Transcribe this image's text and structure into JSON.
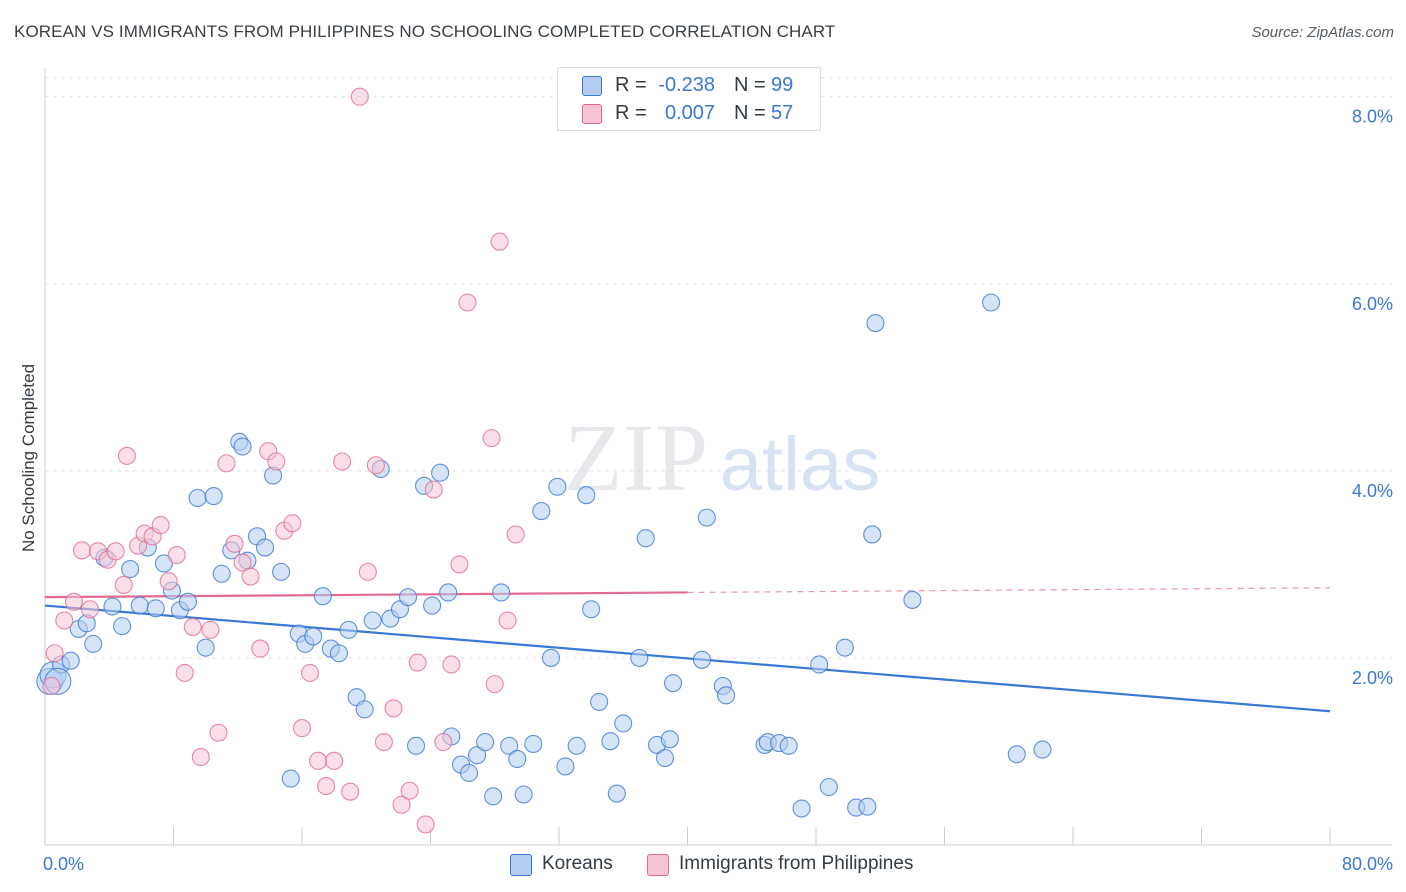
{
  "title": "KOREAN VS IMMIGRANTS FROM PHILIPPINES NO SCHOOLING COMPLETED CORRELATION CHART",
  "source": "Source: ZipAtlas.com",
  "watermark": {
    "zip": "ZIP",
    "atlas": "atlas"
  },
  "colors": {
    "blue": "#3a78d6",
    "blue_fill": "#b5cdf1",
    "pink": "#e26a93",
    "pink_fill": "#f6c4d5",
    "grid": "#dfe3e8",
    "axis": "#c9cdd3"
  },
  "legend_top": [
    {
      "r_label": "R =",
      "r_value": "-0.238",
      "n_label": "N =",
      "n_value": "99"
    },
    {
      "r_label": "R =",
      "r_value": "0.007",
      "n_label": "N =",
      "n_value": "57"
    }
  ],
  "legend_bottom": [
    "Koreans",
    "Immigrants from Philippines"
  ],
  "chart_data": {
    "type": "scatter",
    "title": "KOREAN VS IMMIGRANTS FROM PHILIPPINES NO SCHOOLING COMPLETED CORRELATION CHART",
    "xlabel": "",
    "ylabel": "No Schooling Completed",
    "xlim": [
      0,
      80
    ],
    "ylim": [
      0,
      8.2
    ],
    "x_tick_labels": [
      "0.0%",
      "80.0%"
    ],
    "y_ticks": [
      2,
      4,
      6,
      8
    ],
    "y_tick_labels": [
      "2.0%",
      "4.0%",
      "6.0%",
      "8.0%"
    ],
    "grid": true,
    "legend_position": "bottom",
    "series": [
      {
        "name": "Koreans",
        "color": "#3a78d6",
        "r": -0.238,
        "n": 99,
        "trend": {
          "x0": 0,
          "y0": 2.56,
          "x1": 80,
          "y1": 1.43
        },
        "points": [
          [
            0.3,
            1.75
          ],
          [
            0.5,
            1.82
          ],
          [
            1.0,
            1.93
          ],
          [
            1.6,
            1.97
          ],
          [
            2.1,
            2.31
          ],
          [
            2.6,
            2.37
          ],
          [
            3.0,
            2.15
          ],
          [
            3.7,
            3.07
          ],
          [
            4.2,
            2.55
          ],
          [
            4.8,
            2.34
          ],
          [
            5.3,
            2.95
          ],
          [
            5.9,
            2.56
          ],
          [
            6.4,
            3.18
          ],
          [
            6.9,
            2.53
          ],
          [
            7.4,
            3.01
          ],
          [
            7.9,
            2.72
          ],
          [
            8.4,
            2.51
          ],
          [
            8.9,
            2.6
          ],
          [
            9.5,
            3.71
          ],
          [
            10.0,
            2.11
          ],
          [
            10.5,
            3.73
          ],
          [
            11.0,
            2.9
          ],
          [
            11.6,
            3.15
          ],
          [
            12.1,
            4.31
          ],
          [
            12.3,
            4.26
          ],
          [
            12.6,
            3.04
          ],
          [
            13.2,
            3.3
          ],
          [
            13.7,
            3.18
          ],
          [
            14.2,
            3.95
          ],
          [
            14.7,
            2.92
          ],
          [
            15.3,
            0.71
          ],
          [
            15.8,
            2.26
          ],
          [
            16.2,
            2.15
          ],
          [
            16.7,
            2.23
          ],
          [
            17.3,
            2.66
          ],
          [
            17.8,
            2.1
          ],
          [
            18.3,
            2.05
          ],
          [
            18.9,
            2.3
          ],
          [
            19.4,
            1.58
          ],
          [
            19.9,
            1.45
          ],
          [
            20.4,
            2.4
          ],
          [
            20.9,
            4.02
          ],
          [
            21.5,
            2.42
          ],
          [
            22.1,
            2.52
          ],
          [
            22.6,
            2.65
          ],
          [
            23.1,
            1.06
          ],
          [
            23.6,
            3.84
          ],
          [
            24.1,
            2.56
          ],
          [
            24.6,
            3.98
          ],
          [
            25.1,
            2.7
          ],
          [
            25.3,
            1.16
          ],
          [
            25.9,
            0.86
          ],
          [
            26.4,
            0.77
          ],
          [
            26.9,
            0.96
          ],
          [
            27.4,
            1.1
          ],
          [
            27.9,
            0.52
          ],
          [
            28.4,
            2.7
          ],
          [
            28.9,
            1.06
          ],
          [
            29.4,
            0.92
          ],
          [
            29.8,
            0.54
          ],
          [
            30.4,
            1.08
          ],
          [
            30.9,
            3.57
          ],
          [
            31.5,
            2.0
          ],
          [
            31.9,
            3.83
          ],
          [
            32.4,
            0.84
          ],
          [
            33.1,
            1.06
          ],
          [
            33.7,
            3.74
          ],
          [
            34.0,
            2.52
          ],
          [
            34.5,
            1.53
          ],
          [
            35.2,
            1.11
          ],
          [
            35.6,
            0.55
          ],
          [
            36.0,
            1.3
          ],
          [
            37.0,
            2.0
          ],
          [
            37.4,
            3.28
          ],
          [
            38.1,
            1.07
          ],
          [
            38.6,
            0.93
          ],
          [
            38.9,
            1.13
          ],
          [
            39.1,
            1.73
          ],
          [
            40.9,
            1.98
          ],
          [
            41.2,
            3.5
          ],
          [
            42.2,
            1.7
          ],
          [
            42.4,
            1.6
          ],
          [
            44.8,
            1.07
          ],
          [
            45.0,
            1.1
          ],
          [
            45.7,
            1.09
          ],
          [
            46.3,
            1.06
          ],
          [
            47.1,
            0.39
          ],
          [
            48.2,
            1.93
          ],
          [
            48.8,
            0.62
          ],
          [
            49.8,
            2.11
          ],
          [
            50.5,
            0.4
          ],
          [
            51.2,
            0.41
          ],
          [
            51.5,
            3.32
          ],
          [
            51.7,
            5.58
          ],
          [
            54.0,
            2.62
          ],
          [
            58.9,
            5.8
          ],
          [
            60.5,
            0.97
          ],
          [
            62.1,
            1.02
          ],
          [
            0.8,
            1.75
          ]
        ]
      },
      {
        "name": "Immigrants from Philippines",
        "color": "#e26a93",
        "r": 0.007,
        "n": 57,
        "trend": {
          "x0": 0,
          "y0": 2.65,
          "x1": 80,
          "y1": 2.75,
          "solid_until": 40
        },
        "points": [
          [
            0.6,
            2.05
          ],
          [
            0.4,
            1.7
          ],
          [
            1.2,
            2.4
          ],
          [
            1.8,
            2.6
          ],
          [
            2.3,
            3.15
          ],
          [
            2.8,
            2.52
          ],
          [
            3.3,
            3.14
          ],
          [
            3.9,
            3.05
          ],
          [
            4.4,
            3.14
          ],
          [
            4.9,
            2.78
          ],
          [
            5.1,
            4.16
          ],
          [
            5.8,
            3.2
          ],
          [
            6.2,
            3.33
          ],
          [
            6.7,
            3.3
          ],
          [
            7.2,
            3.42
          ],
          [
            7.7,
            2.82
          ],
          [
            8.2,
            3.1
          ],
          [
            8.7,
            1.84
          ],
          [
            9.2,
            2.33
          ],
          [
            9.7,
            0.94
          ],
          [
            10.3,
            2.3
          ],
          [
            10.8,
            1.2
          ],
          [
            11.3,
            4.08
          ],
          [
            11.8,
            3.22
          ],
          [
            12.3,
            3.02
          ],
          [
            12.8,
            2.87
          ],
          [
            13.4,
            2.1
          ],
          [
            13.9,
            4.21
          ],
          [
            14.4,
            4.1
          ],
          [
            14.9,
            3.36
          ],
          [
            15.4,
            3.44
          ],
          [
            16.0,
            1.25
          ],
          [
            16.5,
            1.84
          ],
          [
            17.0,
            0.9
          ],
          [
            17.5,
            0.63
          ],
          [
            18.0,
            0.9
          ],
          [
            18.5,
            4.1
          ],
          [
            19.0,
            0.57
          ],
          [
            19.6,
            8.0
          ],
          [
            20.1,
            2.92
          ],
          [
            20.6,
            4.06
          ],
          [
            21.1,
            1.1
          ],
          [
            21.7,
            1.46
          ],
          [
            22.2,
            0.43
          ],
          [
            22.7,
            0.58
          ],
          [
            23.2,
            1.95
          ],
          [
            23.7,
            0.22
          ],
          [
            24.2,
            3.8
          ],
          [
            24.8,
            1.1
          ],
          [
            25.3,
            1.93
          ],
          [
            25.8,
            3.0
          ],
          [
            26.3,
            5.8
          ],
          [
            27.8,
            4.35
          ],
          [
            28.3,
            6.45
          ],
          [
            28.8,
            2.4
          ],
          [
            29.3,
            3.32
          ],
          [
            28.0,
            1.72
          ]
        ]
      }
    ]
  }
}
